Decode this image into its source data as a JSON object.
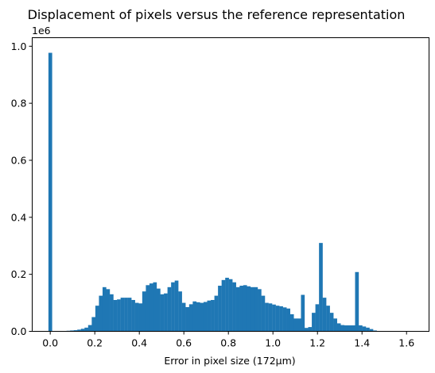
{
  "chart_data": {
    "type": "bar",
    "title": "Displacement of pixels versus the reference representation",
    "xlabel": "Error in pixel size (172µm)",
    "ylabel": "",
    "y_offset_label": "1e6",
    "xlim": [
      -0.081,
      1.701
    ],
    "ylim": [
      0,
      1030000
    ],
    "bin_width": 0.0162,
    "x_ticks": [
      0.0,
      0.2,
      0.4,
      0.6,
      0.8,
      1.0,
      1.2,
      1.4,
      1.6
    ],
    "x_tick_labels": [
      "0.0",
      "0.2",
      "0.4",
      "0.6",
      "0.8",
      "1.0",
      "1.2",
      "1.4",
      "1.6"
    ],
    "y_ticks": [
      0,
      200000,
      400000,
      600000,
      800000,
      1000000
    ],
    "y_tick_labels": [
      "0.0",
      "0.2",
      "0.4",
      "0.6",
      "0.8",
      "1.0"
    ],
    "color": "#1f77b4",
    "grid": false,
    "bin_starts": [
      -0.0081,
      0.0081,
      0.0243,
      0.0405,
      0.0567,
      0.0729,
      0.0891,
      0.1053,
      0.1215,
      0.1377,
      0.1539,
      0.1701,
      0.1863,
      0.2025,
      0.2187,
      0.2349,
      0.2511,
      0.2673,
      0.2835,
      0.2997,
      0.3159,
      0.3321,
      0.3483,
      0.3645,
      0.3807,
      0.3969,
      0.4131,
      0.4293,
      0.4455,
      0.4617,
      0.4779,
      0.4941,
      0.5103,
      0.5265,
      0.5427,
      0.5589,
      0.5751,
      0.5913,
      0.6075,
      0.6237,
      0.6399,
      0.6561,
      0.6723,
      0.6885,
      0.7047,
      0.7209,
      0.7371,
      0.7533,
      0.7695,
      0.7857,
      0.8019,
      0.8181,
      0.8343,
      0.8505,
      0.8667,
      0.8829,
      0.8991,
      0.9153,
      0.9315,
      0.9477,
      0.9639,
      0.9801,
      0.9963,
      1.0125,
      1.0287,
      1.0449,
      1.0611,
      1.0773,
      1.0935,
      1.1097,
      1.1259,
      1.1421,
      1.1583,
      1.1745,
      1.1907,
      1.2069,
      1.2231,
      1.2393,
      1.2555,
      1.2717,
      1.2879,
      1.3041,
      1.3203,
      1.3365,
      1.3527,
      1.3689,
      1.3851,
      1.4013,
      1.4175,
      1.4337,
      1.4499,
      1.4661,
      1.4823,
      1.4985,
      1.5147,
      1.5309,
      1.5471,
      1.5633,
      1.5795
    ],
    "values": [
      977000,
      0,
      0,
      0,
      0,
      2000,
      3000,
      4000,
      6000,
      9000,
      13000,
      22000,
      50000,
      90000,
      125000,
      155000,
      148000,
      130000,
      110000,
      112000,
      118000,
      118000,
      118000,
      110000,
      100000,
      98000,
      140000,
      162000,
      168000,
      172000,
      150000,
      130000,
      133000,
      155000,
      172000,
      178000,
      140000,
      100000,
      85000,
      95000,
      105000,
      102000,
      100000,
      103000,
      108000,
      110000,
      125000,
      160000,
      180000,
      188000,
      183000,
      172000,
      155000,
      160000,
      162000,
      158000,
      155000,
      155000,
      148000,
      125000,
      100000,
      98000,
      94000,
      90000,
      88000,
      84000,
      80000,
      60000,
      45000,
      45000,
      128000,
      12000,
      15000,
      65000,
      95000,
      310000,
      118000,
      90000,
      65000,
      45000,
      28000,
      22000,
      21000,
      21000,
      21000,
      208000,
      21000,
      17000,
      13000,
      8000,
      3000,
      1000,
      500,
      300,
      0,
      0,
      0,
      0,
      0
    ]
  }
}
